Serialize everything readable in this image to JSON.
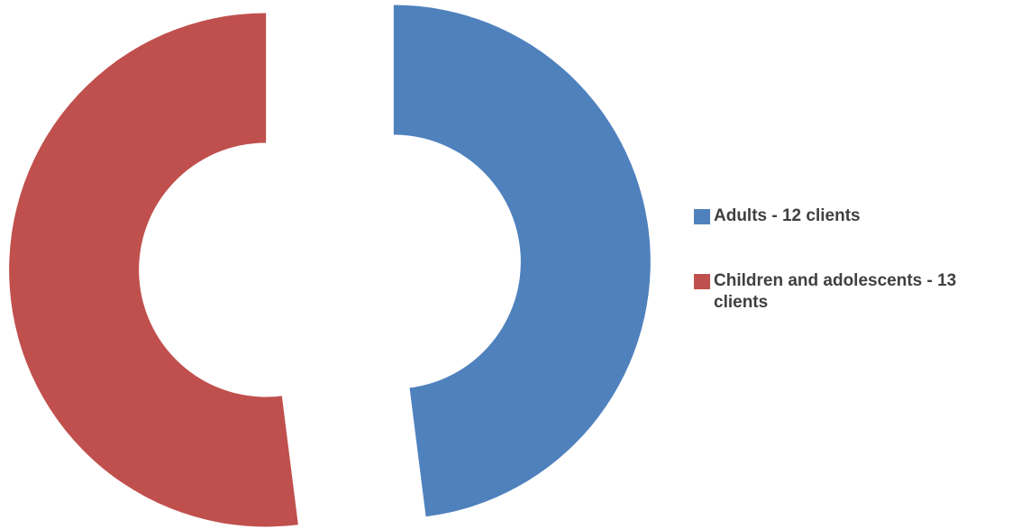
{
  "chart_data": {
    "type": "pie",
    "variant": "exploded-donut",
    "title": "",
    "categories": [
      "Adults - 12 clients",
      "Children and adolescents - 13 clients"
    ],
    "values": [
      12,
      13
    ],
    "colors": [
      "#4F81BD",
      "#C0504D"
    ],
    "legend": {
      "placement": "right",
      "entries": [
        "Adults - 12 clients",
        "Children and adolescents - 13 clients"
      ]
    }
  }
}
